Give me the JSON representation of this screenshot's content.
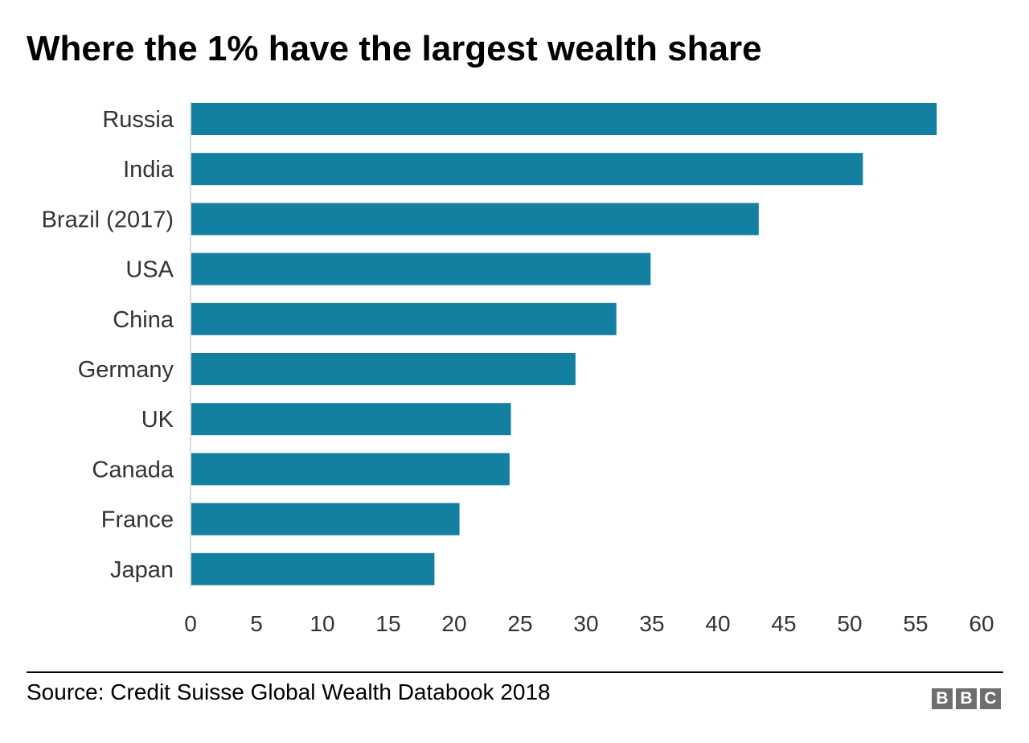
{
  "chart_data": {
    "type": "bar",
    "orientation": "horizontal",
    "title": "Where the 1% have the largest wealth share",
    "categories": [
      "Russia",
      "India",
      "Brazil (2017)",
      "USA",
      "China",
      "Germany",
      "UK",
      "Canada",
      "France",
      "Japan"
    ],
    "values": [
      56.6,
      51.0,
      43.1,
      34.9,
      32.3,
      29.2,
      24.3,
      24.2,
      20.4,
      18.5
    ],
    "xlim": [
      0,
      60
    ],
    "xticks": [
      "0",
      "5",
      "10",
      "15",
      "20",
      "25",
      "30",
      "35",
      "40",
      "45",
      "50",
      "55",
      "60"
    ],
    "xlabel": "",
    "ylabel": "",
    "grid": false,
    "bar_color": "#1380a1",
    "source": "Source: Credit Suisse Global Wealth Databook 2018"
  },
  "logo": {
    "text": "BBC",
    "letters": [
      "B",
      "B",
      "C"
    ]
  }
}
